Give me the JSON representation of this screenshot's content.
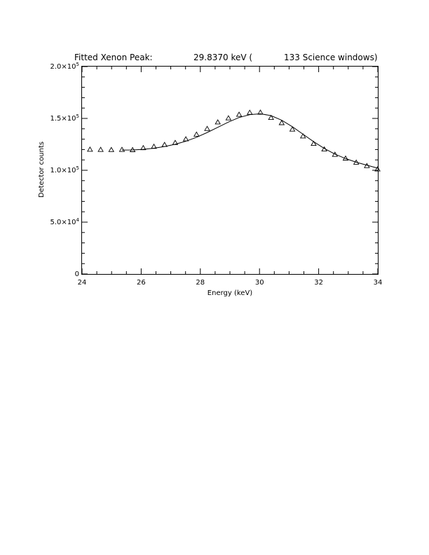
{
  "chart_data": {
    "type": "scatter",
    "title": {
      "prefix": "Fitted Xenon Peak:",
      "peak_energy": "29.8370 keV (",
      "windows": "133 Science windows)"
    },
    "xlabel": "Energy (keV)",
    "ylabel": "Detector counts",
    "xlim": [
      24,
      34
    ],
    "ylim": [
      0,
      200000
    ],
    "x_ticks": [
      {
        "value": 24,
        "label": "24"
      },
      {
        "value": 26,
        "label": "26"
      },
      {
        "value": 28,
        "label": "28"
      },
      {
        "value": 30,
        "label": "30"
      },
      {
        "value": 32,
        "label": "32"
      },
      {
        "value": 34,
        "label": "34"
      }
    ],
    "y_ticks": [
      {
        "value": 0,
        "mantissa": "0",
        "exponent": ""
      },
      {
        "value": 50000,
        "mantissa": "5.0×10",
        "exponent": "4"
      },
      {
        "value": 100000,
        "mantissa": "1.0×10",
        "exponent": "5"
      },
      {
        "value": 150000,
        "mantissa": "1.5×10",
        "exponent": "5"
      },
      {
        "value": 200000,
        "mantissa": "2.0×10",
        "exponent": "5"
      }
    ],
    "x_minor_step": 0.5,
    "y_minor_step": 10000,
    "grid": false,
    "series": [
      {
        "kind": "data",
        "marker": "triangle",
        "x": [
          24.27,
          24.63,
          24.99,
          25.35,
          25.71,
          26.07,
          26.43,
          26.79,
          27.15,
          27.51,
          27.87,
          28.23,
          28.59,
          28.95,
          29.31,
          29.67,
          30.03,
          30.39,
          30.75,
          31.11,
          31.47,
          31.83,
          32.19,
          32.55,
          32.91,
          33.27,
          33.63,
          33.99
        ],
        "y": [
          120000,
          119800,
          119700,
          119800,
          119600,
          121500,
          122800,
          124600,
          126500,
          130000,
          134500,
          140000,
          146300,
          150200,
          153700,
          155600,
          155700,
          150600,
          145600,
          139400,
          132800,
          125600,
          120200,
          115100,
          111400,
          107500,
          104200,
          101000
        ]
      },
      {
        "kind": "fit",
        "style": "line",
        "x": [
          25.35,
          25.71,
          26.07,
          26.43,
          26.79,
          27.15,
          27.51,
          27.87,
          28.23,
          28.59,
          28.95,
          29.31,
          29.67,
          30.03,
          30.39,
          30.75,
          31.11,
          31.47,
          31.83,
          32.19,
          32.55,
          32.91,
          33.27,
          33.63,
          34.0
        ],
        "y": [
          119500,
          119600,
          120200,
          121300,
          122900,
          125100,
          128000,
          131800,
          136400,
          141400,
          146500,
          150900,
          153600,
          154500,
          152700,
          148300,
          142000,
          134800,
          127600,
          121100,
          115600,
          111300,
          107800,
          104900,
          102000
        ]
      }
    ],
    "colors": {
      "ink": "#000000",
      "background": "#ffffff"
    }
  }
}
